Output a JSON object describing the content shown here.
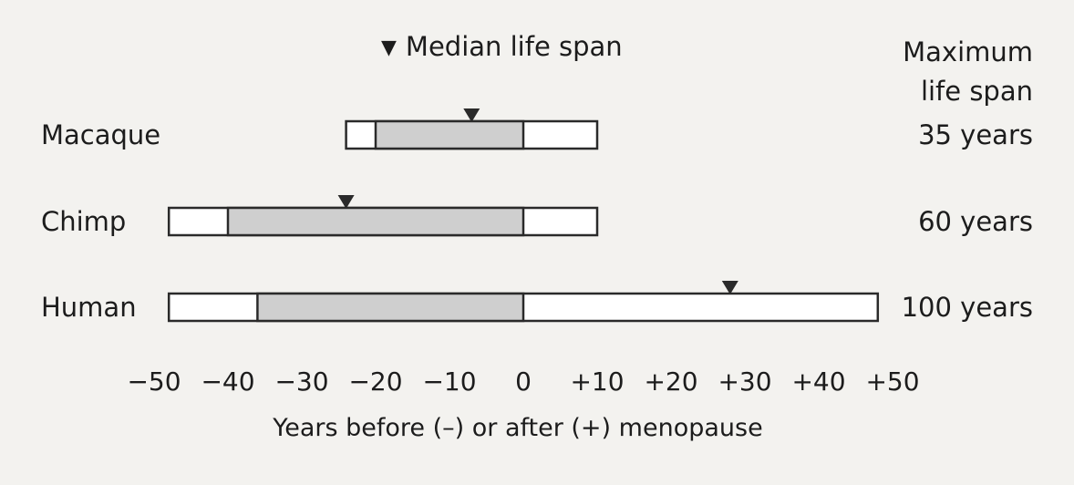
{
  "chart_data": {
    "type": "bar",
    "xlabel": "Years before (–) or after (+) menopause",
    "xlim": [
      -50,
      50
    ],
    "x_ticks": [
      -50,
      -40,
      -30,
      -20,
      -10,
      0,
      10,
      20,
      30,
      40,
      50
    ],
    "x_tick_labels": [
      "−50",
      "−40",
      "−30",
      "−20",
      "−10",
      "0",
      "+10",
      "+20",
      "+30",
      "+40",
      "+50"
    ],
    "legend": {
      "symbol": "▼",
      "label": "Median life span"
    },
    "right_header": [
      "Maximum",
      "life span"
    ],
    "series": [
      {
        "name": "Macaque",
        "start": -24,
        "shaded_start": -20,
        "shaded_end": 0,
        "end": 10,
        "median": -7,
        "max_life_span": "35 years"
      },
      {
        "name": "Chimp",
        "start": -48,
        "shaded_start": -40,
        "shaded_end": 0,
        "end": 10,
        "median": -24,
        "max_life_span": "60 years"
      },
      {
        "name": "Human",
        "start": -48,
        "shaded_start": -36,
        "shaded_end": 0,
        "end": 48,
        "median": 28,
        "max_life_span": "100 years"
      }
    ],
    "colors": {
      "shaded": "#cfcfcf",
      "bar_fill": "#ffffff",
      "stroke": "#2a2a2a",
      "marker": "#2a2a2a"
    }
  }
}
